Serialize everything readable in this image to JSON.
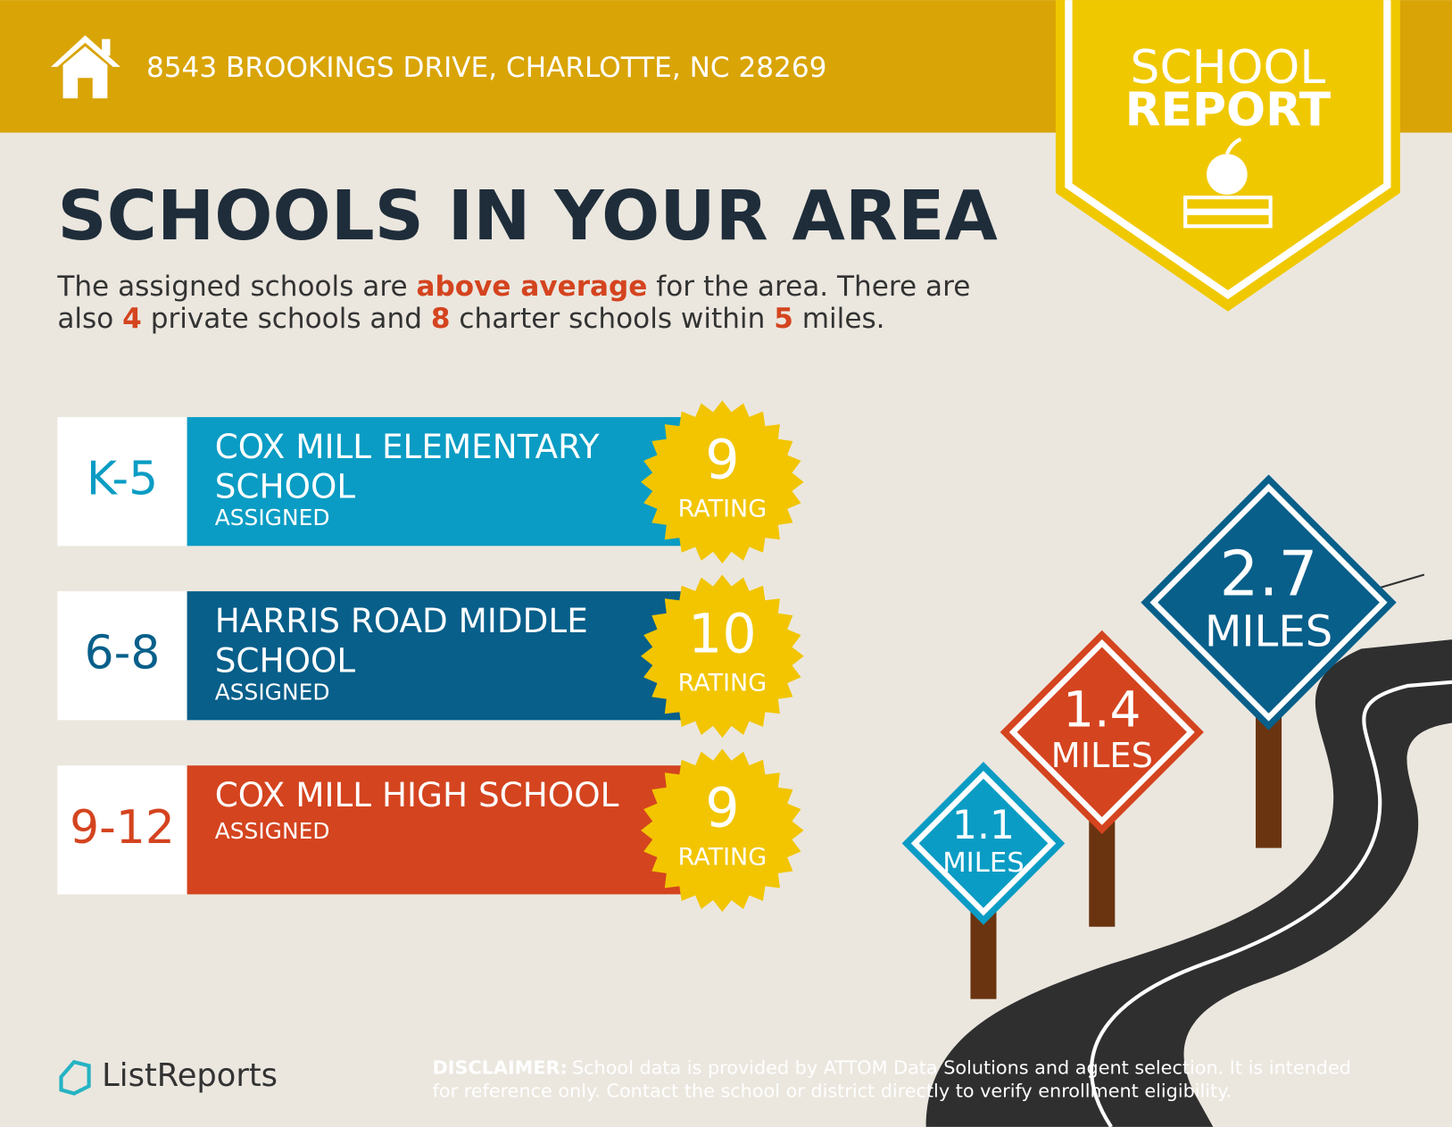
{
  "header": {
    "address": "8543 BROOKINGS DRIVE, CHARLOTTE, NC 28269"
  },
  "badge": {
    "line1": "SCHOOL",
    "line2": "REPORT"
  },
  "title": "SCHOOLS IN YOUR AREA",
  "description": {
    "lines": [
      [
        {
          "text": "The assigned schools are ",
          "emphasis": false
        },
        {
          "text": "above average",
          "emphasis": true
        },
        {
          "text": " for the area. There are",
          "emphasis": false
        }
      ],
      [
        {
          "text": "also ",
          "emphasis": false
        },
        {
          "text": "4",
          "emphasis": true
        },
        {
          "text": " private schools and ",
          "emphasis": false
        },
        {
          "text": "8",
          "emphasis": true
        },
        {
          "text": " charter schools within ",
          "emphasis": false
        },
        {
          "text": "5",
          "emphasis": true
        },
        {
          "text": " miles.",
          "emphasis": false
        }
      ]
    ]
  },
  "schools": [
    {
      "grades": "K-5",
      "name_lines": [
        "COX MILL ELEMENTARY",
        "SCHOOL"
      ],
      "status": "ASSIGNED",
      "rating": 9,
      "rating_label": "RATING",
      "color": "#0a9cc4"
    },
    {
      "grades": "6-8",
      "name_lines": [
        "HARRIS ROAD MIDDLE",
        "SCHOOL"
      ],
      "status": "ASSIGNED",
      "rating": 10,
      "rating_label": "RATING",
      "color": "#075f8a"
    },
    {
      "grades": "9-12",
      "name_lines": [
        "COX MILL HIGH SCHOOL"
      ],
      "status": "ASSIGNED",
      "rating": 9,
      "rating_label": "RATING",
      "color": "#d4441f"
    }
  ],
  "distances": [
    {
      "value": 1.1,
      "unit": "MILES",
      "color": "#0a9cc4"
    },
    {
      "value": 1.4,
      "unit": "MILES",
      "color": "#d4441f"
    },
    {
      "value": 2.7,
      "unit": "MILES",
      "color": "#075f8a"
    }
  ],
  "footer": {
    "logo": "ListReports",
    "disclaimer_label": "DISCLAIMER:",
    "disclaimer_lines": [
      "School data is provided by ATTOM Data Solutions and agent selection. It is intended",
      "for reference only. Contact the school or district directly to verify enrollment eligibility."
    ]
  }
}
